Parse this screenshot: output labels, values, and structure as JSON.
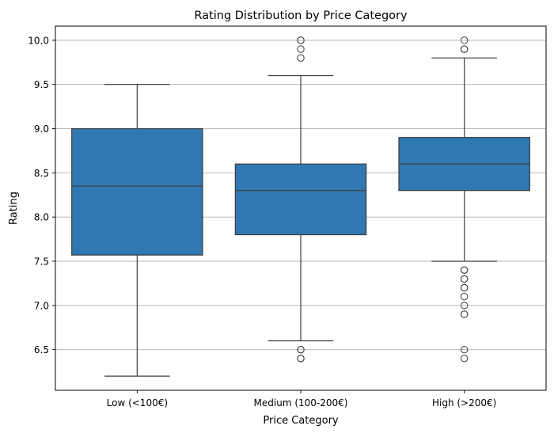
{
  "chart_data": {
    "type": "box",
    "title": "Rating Distribution by Price Category",
    "xlabel": "Price Category",
    "ylabel": "Rating",
    "ylim": [
      6.04,
      10.16
    ],
    "yticks": [
      6.5,
      7.0,
      7.5,
      8.0,
      8.5,
      9.0,
      9.5,
      10.0
    ],
    "ytick_labels": [
      "6.5",
      "7.0",
      "7.5",
      "8.0",
      "8.5",
      "9.0",
      "9.5",
      "10.0"
    ],
    "grid": "horizontal",
    "box_color": "#2f78b1",
    "line_color": "#3d3d3d",
    "grid_color": "#b0b0b0",
    "categories": [
      "Low (<100€)",
      "Medium (100-200€)",
      "High (>200€)"
    ],
    "boxes": [
      {
        "category": "Low (<100€)",
        "whisker_low": 6.2,
        "q1": 7.57,
        "median": 8.35,
        "q3": 9.0,
        "whisker_high": 9.5,
        "outliers": []
      },
      {
        "category": "Medium (100-200€)",
        "whisker_low": 6.6,
        "q1": 7.8,
        "median": 8.3,
        "q3": 8.6,
        "whisker_high": 9.6,
        "outliers": [
          10.0,
          10.0,
          9.9,
          9.8,
          6.5,
          6.5,
          6.4,
          6.4
        ]
      },
      {
        "category": "High (>200€)",
        "whisker_low": 7.5,
        "q1": 8.3,
        "median": 8.6,
        "q3": 8.9,
        "whisker_high": 9.8,
        "outliers": [
          10.0,
          9.9,
          9.9,
          7.4,
          7.4,
          7.3,
          7.3,
          7.2,
          7.2,
          7.1,
          7.0,
          6.9,
          6.9,
          6.5,
          6.4
        ]
      }
    ]
  }
}
